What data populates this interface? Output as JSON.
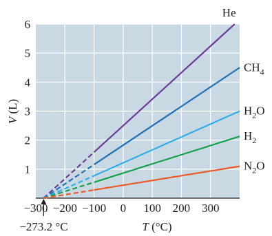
{
  "chart_data": {
    "type": "line",
    "xlabel": "T (°C)",
    "ylabel": "V (L)",
    "xlim": [
      -300,
      400
    ],
    "ylim": [
      0,
      6
    ],
    "xticks": [
      -300,
      -200,
      -100,
      0,
      100,
      200,
      300
    ],
    "yticks": [
      1,
      2,
      3,
      4,
      5,
      6
    ],
    "x_tick_labels": [
      "−300",
      "−200",
      "−100",
      "0",
      "100",
      "200",
      "300"
    ],
    "y_tick_labels": [
      "1",
      "2",
      "3",
      "4",
      "5",
      "6"
    ],
    "grid": true,
    "background_color": "#c9d9e4",
    "grid_color": "#ffffff",
    "extrapolation_style": "dashed",
    "measured_from_x": -100,
    "annotation": {
      "text": "−273.2 °C",
      "x": -273.2,
      "y": 0
    },
    "series": [
      {
        "name": "He",
        "name_base": "He",
        "name_sub": "",
        "name_tail": "",
        "color": "#6a3c96",
        "x": [
          -273.2,
          383
        ],
        "y": [
          0,
          6.0
        ]
      },
      {
        "name": "CH4",
        "name_base": "CH",
        "name_sub": "4",
        "name_tail": "",
        "color": "#1e6fb3",
        "x": [
          -273.2,
          400
        ],
        "y": [
          0,
          4.5
        ]
      },
      {
        "name": "H2O",
        "name_base": "H",
        "name_sub": "2",
        "name_tail": "O",
        "color": "#2eaee6",
        "x": [
          -273.2,
          400
        ],
        "y": [
          0,
          3.0
        ]
      },
      {
        "name": "H2",
        "name_base": "H",
        "name_sub": "2",
        "name_tail": "",
        "color": "#17a04a",
        "x": [
          -273.2,
          400
        ],
        "y": [
          0,
          2.13
        ]
      },
      {
        "name": "N2O",
        "name_base": "N",
        "name_sub": "2",
        "name_tail": "O",
        "color": "#ec5a26",
        "x": [
          -273.2,
          400
        ],
        "y": [
          0,
          1.1
        ]
      }
    ]
  }
}
